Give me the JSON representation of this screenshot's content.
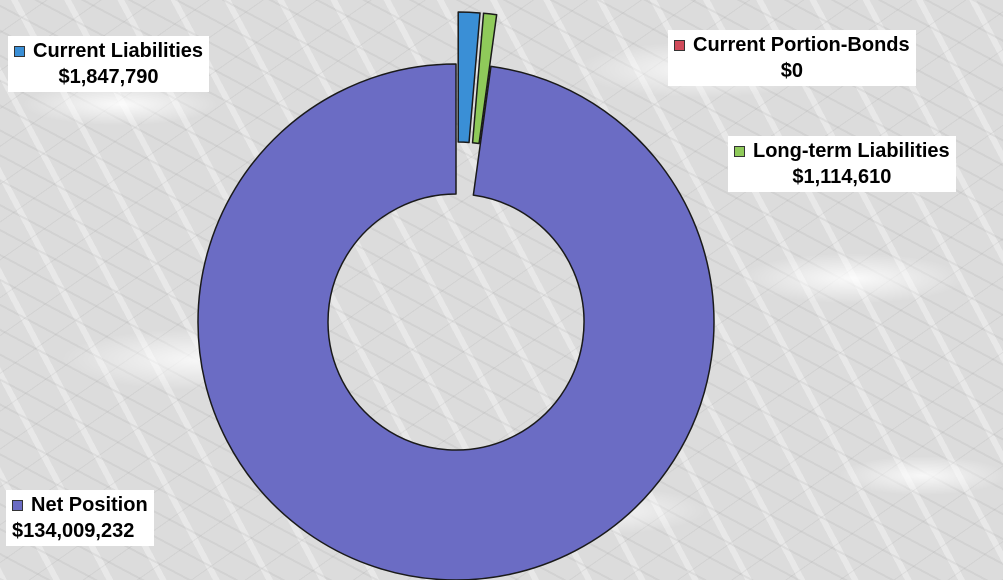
{
  "chart_data": {
    "type": "pie",
    "style": "doughnut",
    "slices": [
      {
        "label": "Current Liabilities",
        "value": 1847790,
        "value_text": "$1,847,790",
        "color": "#3a8fd6",
        "exploded": true
      },
      {
        "label": "Current Portion-Bonds",
        "value": 0,
        "value_text": "$0",
        "color": "#d04a5a",
        "exploded": false
      },
      {
        "label": "Long-term Liabilities",
        "value": 1114610,
        "value_text": "$1,114,610",
        "color": "#8fca5a",
        "exploded": true
      },
      {
        "label": "Net Position",
        "value": 134009232,
        "value_text": "$134,009,232",
        "color": "#6b6cc4",
        "exploded": false
      }
    ],
    "start_angle_deg": 0,
    "direction": "clockwise",
    "legend": "labels beside chart"
  }
}
